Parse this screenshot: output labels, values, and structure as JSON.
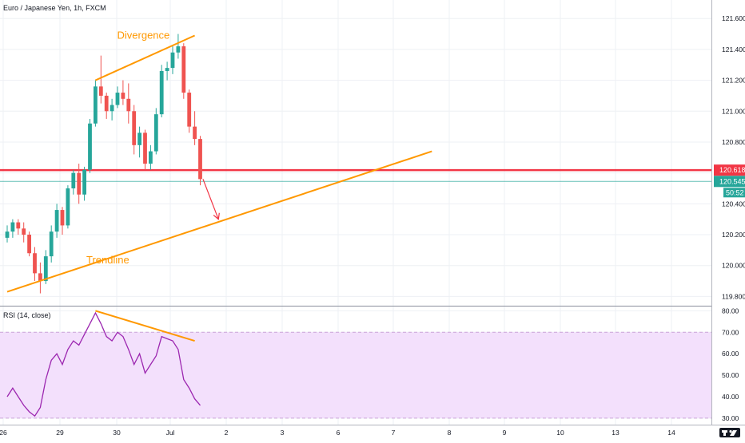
{
  "header": {
    "symbol_title": "Euro / Japanese Yen, 1h, FXCM"
  },
  "colors": {
    "up": "#26a69a",
    "down": "#ef5350",
    "orange": "#ff9800",
    "red_level": "#f23645",
    "teal_label": "#26a69a",
    "rsi_line": "#9c27b0",
    "rsi_band": "#f3e0fc"
  },
  "chart_data": [
    {
      "type": "candlestick",
      "title": "Euro / Japanese Yen, 1h, FXCM",
      "ylim": [
        119.74,
        121.72
      ],
      "y_ticks": [
        119.8,
        120.0,
        120.2,
        120.4,
        120.6,
        120.8,
        121.0,
        121.2,
        121.4,
        121.6
      ],
      "y_tick_labels": [
        "119.800",
        "120.000",
        "120.200",
        "120.400",
        "120.600",
        "120.800",
        "121.000",
        "121.200",
        "121.400",
        "121.600"
      ],
      "x_ticks": [
        "26",
        "29",
        "30",
        "Jul",
        "2",
        "3",
        "6",
        "7",
        "8",
        "9",
        "10",
        "13",
        "14"
      ],
      "horizontal_level": {
        "value": 120.618,
        "label": "120.618"
      },
      "last_price": {
        "value": 120.545,
        "label": "120.545",
        "countdown": "50:52"
      },
      "annotations": [
        {
          "text": "Divergence",
          "from": {
            "bar": 16,
            "price": 121.2
          },
          "to": {
            "bar": 34,
            "price": 121.49
          }
        },
        {
          "text": "Trendline",
          "from": {
            "bar": 0,
            "price": 119.83
          },
          "to": {
            "bar": 77,
            "price": 120.74
          }
        },
        {
          "type": "arrow",
          "from": {
            "bar": 35.5,
            "price": 120.56
          },
          "to": {
            "bar": 38.3,
            "price": 120.3
          }
        }
      ],
      "candles": [
        [
          120.18,
          120.26,
          120.15,
          120.22
        ],
        [
          120.22,
          120.3,
          120.18,
          120.28
        ],
        [
          120.28,
          120.3,
          120.2,
          120.24
        ],
        [
          120.24,
          120.28,
          120.15,
          120.2
        ],
        [
          120.2,
          120.22,
          120.06,
          120.08
        ],
        [
          120.08,
          120.12,
          119.9,
          119.95
        ],
        [
          119.95,
          120.02,
          119.82,
          119.9
        ],
        [
          119.9,
          120.1,
          119.88,
          120.06
        ],
        [
          120.06,
          120.26,
          120.02,
          120.22
        ],
        [
          120.22,
          120.4,
          120.18,
          120.36
        ],
        [
          120.36,
          120.38,
          120.2,
          120.26
        ],
        [
          120.26,
          120.52,
          120.24,
          120.5
        ],
        [
          120.5,
          120.62,
          120.46,
          120.6
        ],
        [
          120.6,
          120.66,
          120.4,
          120.46
        ],
        [
          120.46,
          120.64,
          120.42,
          120.62
        ],
        [
          120.62,
          120.95,
          120.6,
          120.92
        ],
        [
          120.92,
          121.2,
          120.9,
          121.16
        ],
        [
          121.16,
          121.36,
          121.05,
          121.1
        ],
        [
          121.1,
          121.12,
          120.95,
          121.0
        ],
        [
          121.0,
          121.08,
          120.94,
          121.04
        ],
        [
          121.04,
          121.16,
          121.02,
          121.12
        ],
        [
          121.12,
          121.2,
          121.04,
          121.08
        ],
        [
          121.08,
          121.18,
          120.92,
          121.0
        ],
        [
          121.0,
          121.04,
          120.72,
          120.78
        ],
        [
          120.78,
          120.9,
          120.7,
          120.86
        ],
        [
          120.86,
          120.88,
          120.62,
          120.66
        ],
        [
          120.66,
          120.78,
          120.62,
          120.74
        ],
        [
          120.74,
          121.02,
          120.72,
          120.98
        ],
        [
          120.98,
          121.3,
          120.96,
          121.26
        ],
        [
          121.26,
          121.32,
          121.2,
          121.28
        ],
        [
          121.28,
          121.42,
          121.24,
          121.38
        ],
        [
          121.38,
          121.5,
          121.34,
          121.42
        ],
        [
          121.42,
          121.44,
          121.08,
          121.12
        ],
        [
          121.12,
          121.14,
          120.86,
          120.9
        ],
        [
          120.9,
          121.0,
          120.78,
          120.82
        ],
        [
          120.82,
          120.84,
          120.52,
          120.56
        ]
      ]
    },
    {
      "type": "line",
      "title": "RSI (14, close)",
      "ylim": [
        27,
        82
      ],
      "y_ticks": [
        30,
        40,
        50,
        60,
        70,
        80
      ],
      "y_tick_labels": [
        "30.00",
        "40.00",
        "50.00",
        "60.00",
        "70.00",
        "80.00"
      ],
      "band": [
        30,
        70
      ],
      "divergence_line": {
        "from": {
          "bar": 16,
          "value": 80
        },
        "to": {
          "bar": 34,
          "value": 66
        }
      },
      "values": [
        40,
        44,
        40,
        36,
        33,
        31,
        35,
        48,
        57,
        60,
        55,
        62,
        66,
        64,
        69,
        74,
        79,
        74,
        68,
        66,
        70,
        68,
        62,
        55,
        60,
        51,
        55,
        59,
        68,
        67,
        66,
        62,
        48,
        44,
        39,
        36
      ]
    }
  ]
}
